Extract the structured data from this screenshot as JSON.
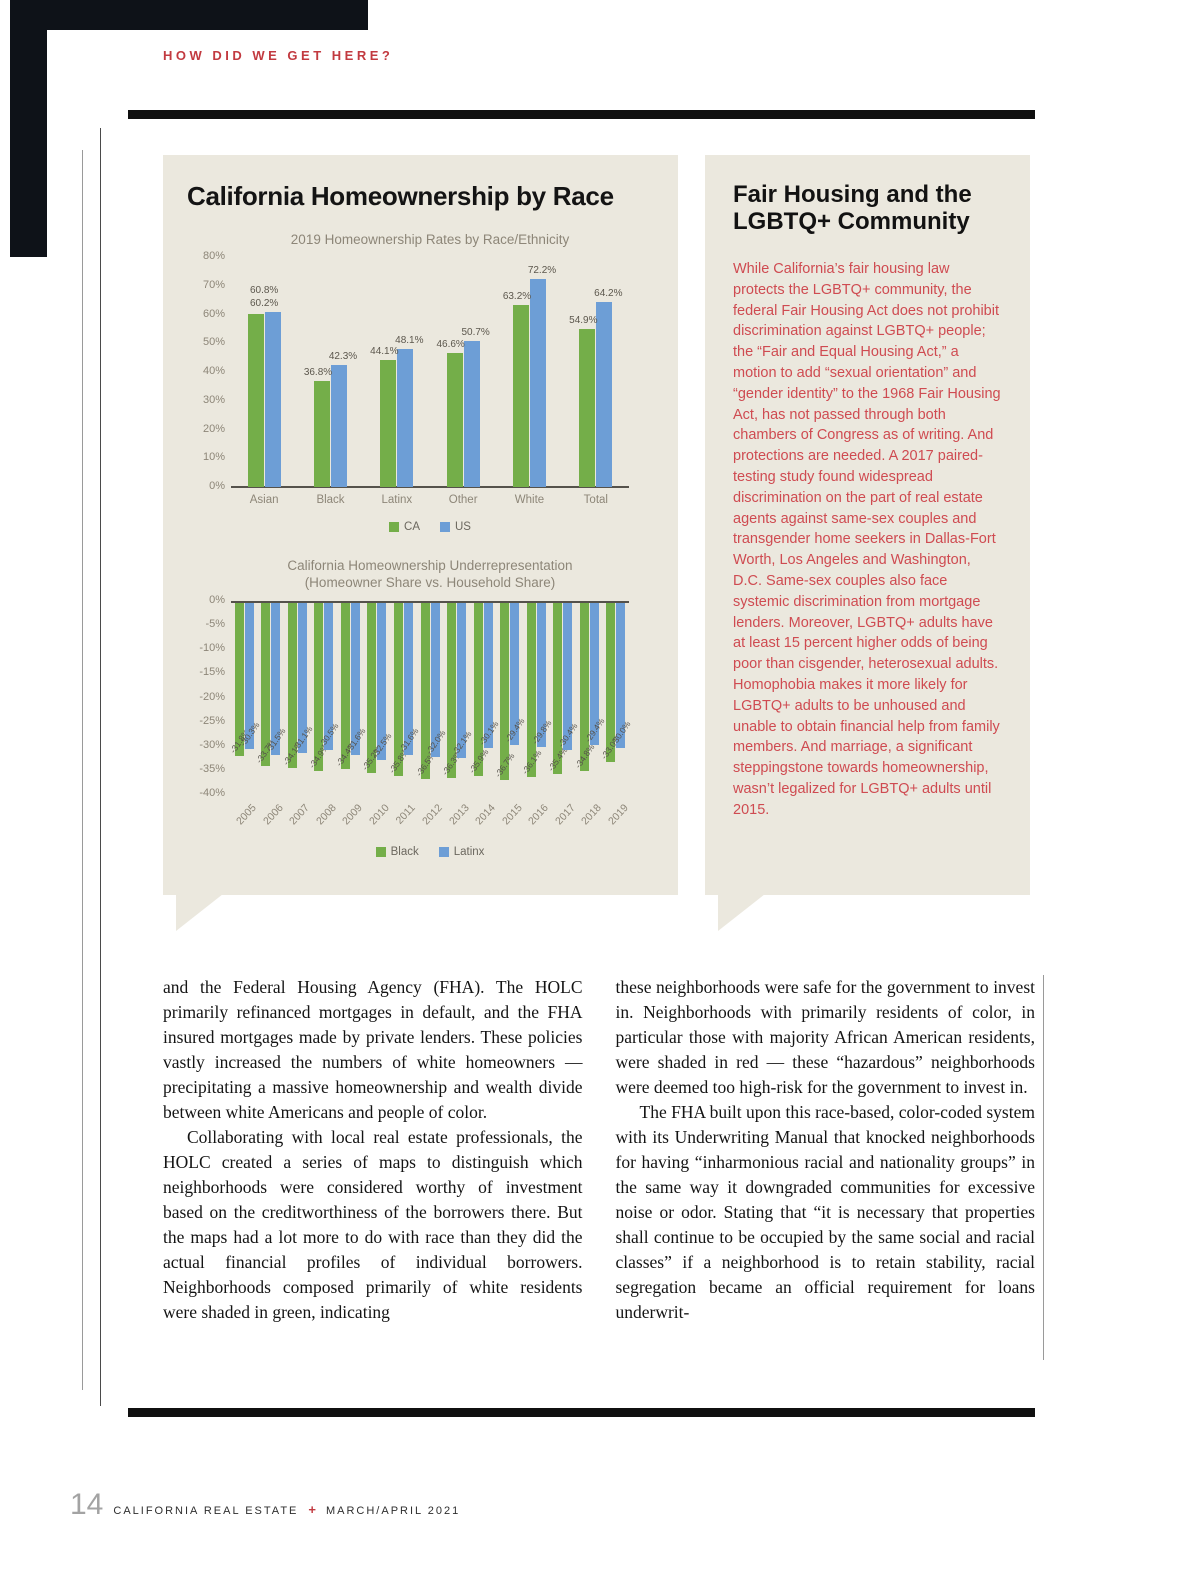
{
  "header": {
    "kicker": "HOW DID WE GET HERE?"
  },
  "charts_panel": {
    "title": "California Homeownership by Race"
  },
  "chart_data": [
    {
      "type": "bar",
      "title": "2019 Homeownership Rates by Race/Ethnicity",
      "categories": [
        "Asian",
        "Black",
        "Latinx",
        "Other",
        "White",
        "Total"
      ],
      "series": [
        {
          "name": "CA",
          "color": "#74ae49",
          "values": [
            60.2,
            36.8,
            44.1,
            46.6,
            63.2,
            54.9
          ]
        },
        {
          "name": "US",
          "color": "#6d9ed6",
          "values": [
            60.8,
            42.3,
            48.1,
            50.7,
            72.2,
            64.2
          ]
        }
      ],
      "xlabel": "",
      "ylabel": "",
      "ylim": [
        0,
        80
      ],
      "ytick_step": 10,
      "legend_position": "bottom"
    },
    {
      "type": "bar",
      "title": "California Homeownership Underrepresentation",
      "subtitle": "(Homeowner Share vs. Household Share)",
      "categories": [
        "2005",
        "2006",
        "2007",
        "2008",
        "2009",
        "2010",
        "2011",
        "2012",
        "2013",
        "2014",
        "2015",
        "2016",
        "2017",
        "2018",
        "2019"
      ],
      "series": [
        {
          "name": "Black",
          "color": "#74ae49",
          "values": [
            -31.8,
            -33.7,
            -34.1,
            -34.9,
            -34.4,
            -35.2,
            -35.8,
            -36.5,
            -36.3,
            -35.9,
            -36.7,
            -36.1,
            -35.4,
            -34.8,
            -33.0
          ]
        },
        {
          "name": "Latinx",
          "color": "#6d9ed6",
          "values": [
            -30.3,
            -31.5,
            -31.1,
            -30.5,
            -31.6,
            -32.5,
            -31.6,
            -32.0,
            -32.1,
            -30.1,
            -29.4,
            -29.8,
            -30.4,
            -29.4,
            -30.0
          ]
        }
      ],
      "xlabel": "",
      "ylabel": "",
      "ylim": [
        0,
        -40
      ],
      "ytick_step": -5,
      "legend_position": "bottom"
    }
  ],
  "sidebar_panel": {
    "title": "Fair Housing and the LGBTQ+ Community",
    "body": "While California’s fair housing law protects the LGBTQ+ community, the federal Fair Housing Act does not prohibit discrimination against LGBTQ+ people; the “Fair and Equal Housing Act,” a motion to add “sexual orientation” and “gender identity” to the 1968 Fair Housing Act, has not passed through both chambers of Congress as of writing. And protections are needed. A 2017 paired-testing study found widespread discrimination on the part of real estate agents against same-sex couples and transgender home seekers in Dallas-Fort Worth, Los Angeles and Washington, D.C. Same-sex couples also face systemic discrimination from mortgage lenders. Moreover, LGBTQ+ adults have at least 15 percent higher odds of being poor than cisgender, heterosexual adults. Homophobia makes it more likely for LGBTQ+ adults to be unhoused and unable to obtain financial help from family members. And marriage, a significant steppingstone towards homeownership, wasn’t legalized for LGBTQ+ adults until 2015."
  },
  "article": {
    "columns": [
      [
        "and the Federal Housing Agency (FHA). The HOLC primarily refinanced mortgages in default, and the FHA insured mortgages made by private lenders. These policies vastly increased the numbers of white homeowners — precipitating a massive homeownership and wealth divide between white Americans and people of color.",
        "Collaborating with local real estate professionals, the HOLC created a series of maps to distinguish which neighborhoods were considered worthy of investment based on the creditworthiness of the borrowers there. But the maps had a lot more to do with race than they did the actual financial profiles of individual borrowers. Neighborhoods composed primarily of white residents were shaded in green, indicating"
      ],
      [
        "these neighborhoods were safe for the government to invest in. Neighborhoods with primarily residents of color, in particular those with majority African American residents, were shaded in red — these “hazardous” neighborhoods were deemed too high-risk for the government to invest in.",
        "The FHA built upon this race-based, color-coded system with its Underwriting Manual that knocked neighborhoods for having “inharmonious racial and nationality groups” in the same way it downgraded communities for excessive noise or odor. Stating that “it is necessary that properties shall continue to be occupied by the same social and racial classes” if a neighborhood is to retain stability, racial segregation became an official requirement for loans underwrit-"
      ]
    ]
  },
  "footer": {
    "page_number": "14",
    "publication": "CALIFORNIA REAL ESTATE",
    "separator": "+",
    "issue": "MARCH/APRIL 2021"
  },
  "colors": {
    "accent_red": "#c23a40",
    "body_red": "#cf4b51",
    "panel_beige": "#ebe8de",
    "bar_green": "#74ae49",
    "bar_blue": "#6d9ed6"
  }
}
